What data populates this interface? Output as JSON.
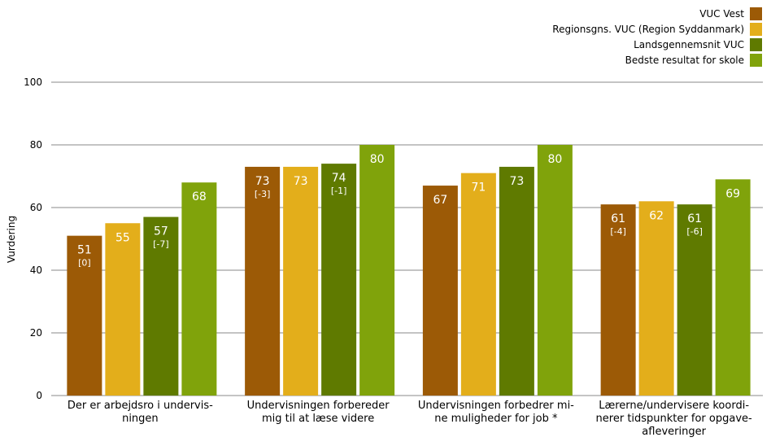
{
  "chart_data": {
    "type": "bar",
    "ylabel": "Vurdering",
    "ylim": [
      0,
      100
    ],
    "yticks": [
      0,
      20,
      40,
      60,
      80,
      100
    ],
    "grid": true,
    "legend_position": "top-right",
    "categories": [
      [
        "Der er arbejdsro i undervis-",
        "ningen"
      ],
      [
        "Undervisningen forbereder",
        "mig til at læse videre"
      ],
      [
        "Undervisningen forbedrer mi-",
        "ne muligheder for job *"
      ],
      [
        "Lærerne/undervisere koordi-",
        "nerer tidspunkter for opgave-",
        "afleveringer"
      ]
    ],
    "series": [
      {
        "name": "VUC Vest",
        "color": "#9c5a06",
        "values": [
          51,
          73,
          67,
          61
        ],
        "notes": [
          "[0]",
          "[-3]",
          "",
          "[-4]"
        ]
      },
      {
        "name": "Regionsgns. VUC (Region Syddanmark)",
        "color": "#e3ae1b",
        "values": [
          55,
          73,
          71,
          62
        ],
        "notes": [
          "",
          "",
          "",
          ""
        ]
      },
      {
        "name": "Landsgennemsnit VUC",
        "color": "#5f7a00",
        "values": [
          57,
          74,
          73,
          61
        ],
        "notes": [
          "[-7]",
          "[-1]",
          "",
          "[-6]"
        ]
      },
      {
        "name": "Bedste resultat for skole",
        "color": "#80a30b",
        "values": [
          68,
          80,
          80,
          69
        ],
        "notes": [
          "",
          "",
          "",
          ""
        ]
      }
    ]
  }
}
